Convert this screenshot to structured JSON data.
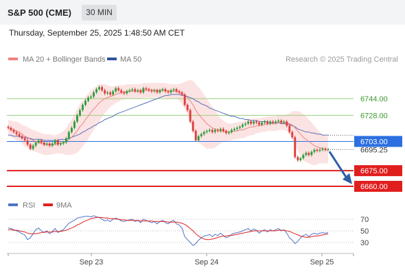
{
  "header": {
    "title": "S&P 500 (CME)",
    "timeframe": "30 MIN"
  },
  "datetime": "Thursday, September 25, 2025 1:48:50 AM CET",
  "legend": {
    "ma20": "MA 20 + Bollinger Bands",
    "ma50": "MA 50",
    "rsi": "RSI",
    "ma9": "9MA"
  },
  "copyright": "Research © 2025 Trading Central",
  "colors": {
    "bull": "#2e9e3e",
    "bear": "#e03c3c",
    "ma20": "#f08080",
    "bollinger_fill": "#fbd9d9",
    "ma50": "#5571b8",
    "resistance": "#9acd7a",
    "pivot": "#2b6fe0",
    "support": "#e01e1e",
    "arrow": "#2d5fa6",
    "rsi": "#4f74c8",
    "ma9_rsi": "#e02020"
  },
  "chart_data": {
    "type": "candlestick",
    "x_ticks": [
      "Sep 23",
      "Sep 24",
      "Sep 25"
    ],
    "y_levels": [
      {
        "label": "6744.00",
        "value": 6744,
        "kind": "resistance"
      },
      {
        "label": "6728.00",
        "value": 6728,
        "kind": "resistance"
      },
      {
        "label": "6703.00",
        "value": 6703,
        "kind": "pivot"
      },
      {
        "label": "6675.00",
        "value": 6675,
        "kind": "support"
      },
      {
        "label": "6660.00",
        "value": 6660,
        "kind": "support"
      }
    ],
    "last_price": {
      "label": "6695.25",
      "value": 6695.25
    },
    "forecast": {
      "from": 6695.25,
      "to": 6664
    },
    "close": [
      6716,
      6714,
      6712,
      6710,
      6708,
      6706,
      6704,
      6700,
      6696,
      6699,
      6702,
      6704,
      6702,
      6700,
      6701,
      6699,
      6701,
      6704,
      6700,
      6701,
      6702,
      6706,
      6712,
      6716,
      6722,
      6728,
      6733,
      6738,
      6742,
      6745,
      6746,
      6750,
      6753,
      6755,
      6752,
      6749,
      6750,
      6748,
      6751,
      6754,
      6752,
      6750,
      6749,
      6751,
      6752,
      6753,
      6751,
      6752,
      6750,
      6754,
      6753,
      6752,
      6751,
      6752,
      6750,
      6752,
      6753,
      6751,
      6750,
      6752,
      6753,
      6751,
      6750,
      6748,
      6738,
      6733,
      6722,
      6713,
      6704,
      6708,
      6710,
      6712,
      6713,
      6714,
      6712,
      6714,
      6713,
      6715,
      6713,
      6711,
      6712,
      6714,
      6715,
      6716,
      6717,
      6719,
      6720,
      6722,
      6720,
      6722,
      6721,
      6719,
      6721,
      6722,
      6720,
      6722,
      6721,
      6722,
      6723,
      6721,
      6722,
      6718,
      6712,
      6707,
      6688,
      6685,
      6687,
      6690,
      6692,
      6690,
      6693,
      6695,
      6694,
      6695,
      6696,
      6695,
      6695.25
    ],
    "ma20": [
      6716,
      6715,
      6714,
      6713,
      6712,
      6710,
      6708,
      6707,
      6705,
      6704,
      6703,
      6702,
      6701,
      6700,
      6700,
      6700,
      6700,
      6700,
      6701,
      6701,
      6702,
      6703,
      6705,
      6707,
      6710,
      6713,
      6717,
      6720,
      6724,
      6727,
      6731,
      6734,
      6737,
      6740,
      6742,
      6744,
      6745,
      6746,
      6747,
      6748,
      6749,
      6750,
      6750,
      6751,
      6751,
      6751,
      6751,
      6751,
      6751,
      6752,
      6752,
      6752,
      6752,
      6752,
      6752,
      6752,
      6752,
      6752,
      6751,
      6751,
      6751,
      6751,
      6750,
      6749,
      6747,
      6745,
      6742,
      6738,
      6733,
      6729,
      6726,
      6723,
      6720,
      6718,
      6716,
      6715,
      6714,
      6713,
      6713,
      6712,
      6712,
      6712,
      6713,
      6713,
      6714,
      6714,
      6715,
      6716,
      6717,
      6717,
      6718,
      6718,
      6719,
      6719,
      6720,
      6720,
      6720,
      6720,
      6721,
      6721,
      6721,
      6721,
      6720,
      6719,
      6716,
      6713,
      6710,
      6707,
      6705,
      6703,
      6701,
      6699,
      6698,
      6697,
      6696,
      6695,
      6695
    ],
    "ma50": [
      6709,
      6709,
      6708,
      6708,
      6708,
      6707,
      6707,
      6706,
      6706,
      6705,
      6705,
      6705,
      6705,
      6704,
      6704,
      6704,
      6704,
      6704,
      6704,
      6705,
      6705,
      6705,
      6706,
      6707,
      6708,
      6709,
      6710,
      6712,
      6713,
      6715,
      6716,
      6718,
      6719,
      6721,
      6722,
      6724,
      6725,
      6726,
      6727,
      6729,
      6730,
      6731,
      6732,
      6733,
      6734,
      6735,
      6736,
      6737,
      6738,
      6739,
      6740,
      6741,
      6742,
      6743,
      6744,
      6745,
      6746,
      6747,
      6747,
      6748,
      6748,
      6748,
      6748,
      6747,
      6747,
      6746,
      6745,
      6744,
      6742,
      6741,
      6739,
      6738,
      6737,
      6735,
      6734,
      6733,
      6732,
      6731,
      6730,
      6729,
      6728,
      6727,
      6727,
      6726,
      6725,
      6725,
      6724,
      6724,
      6723,
      6723,
      6723,
      6722,
      6722,
      6722,
      6722,
      6721,
      6721,
      6721,
      6721,
      6720,
      6720,
      6720,
      6719,
      6718,
      6717,
      6715,
      6714,
      6713,
      6712,
      6712,
      6711,
      6711,
      6710,
      6710,
      6709,
      6709,
      6709
    ],
    "bb_width": [
      8,
      8,
      8,
      9,
      9,
      9,
      10,
      10,
      10,
      10,
      10,
      10,
      10,
      10,
      10,
      10,
      9,
      9,
      9,
      10,
      11,
      13,
      15,
      17,
      19,
      21,
      22,
      22,
      22,
      22,
      21,
      20,
      19,
      18,
      16,
      14,
      12,
      10,
      9,
      8,
      8,
      7,
      7,
      7,
      7,
      7,
      7,
      7,
      7,
      7,
      7,
      7,
      7,
      7,
      7,
      7,
      7,
      7,
      7,
      7,
      7,
      7,
      8,
      10,
      13,
      16,
      20,
      23,
      25,
      26,
      26,
      25,
      24,
      22,
      20,
      18,
      15,
      12,
      10,
      9,
      8,
      8,
      8,
      8,
      8,
      8,
      8,
      8,
      8,
      8,
      7,
      7,
      7,
      7,
      7,
      7,
      7,
      7,
      7,
      7,
      7,
      8,
      10,
      13,
      16,
      19,
      21,
      22,
      22,
      21,
      20,
      19,
      17,
      15,
      14,
      13,
      13
    ],
    "rsi": [
      55,
      54,
      52,
      50,
      48,
      45,
      43,
      35,
      38,
      45,
      52,
      55,
      50,
      47,
      50,
      45,
      49,
      54,
      47,
      50,
      52,
      58,
      63,
      66,
      68,
      72,
      73,
      74,
      75,
      75,
      74,
      76,
      74,
      73,
      70,
      67,
      69,
      66,
      70,
      72,
      70,
      67,
      66,
      68,
      69,
      70,
      66,
      68,
      64,
      70,
      68,
      66,
      64,
      66,
      62,
      66,
      68,
      64,
      62,
      66,
      68,
      62,
      60,
      55,
      40,
      35,
      30,
      25,
      28,
      34,
      38,
      41,
      42,
      44,
      40,
      44,
      42,
      46,
      42,
      38,
      40,
      44,
      46,
      47,
      48,
      50,
      52,
      54,
      50,
      53,
      51,
      46,
      50,
      52,
      48,
      52,
      50,
      52,
      54,
      50,
      52,
      46,
      38,
      34,
      28,
      32,
      38,
      42,
      44,
      40,
      44,
      46,
      44,
      46,
      47,
      46,
      47
    ],
    "rsi_ma9": [
      52,
      52,
      51,
      51,
      50,
      49,
      48,
      46,
      45,
      45,
      45,
      46,
      47,
      48,
      48,
      48,
      48,
      49,
      49,
      49,
      50,
      51,
      53,
      55,
      57,
      60,
      62,
      65,
      67,
      69,
      71,
      72,
      73,
      73,
      73,
      72,
      72,
      71,
      71,
      70,
      70,
      69,
      69,
      68,
      68,
      68,
      68,
      68,
      67,
      67,
      67,
      67,
      67,
      66,
      66,
      66,
      66,
      66,
      65,
      65,
      65,
      65,
      64,
      63,
      61,
      58,
      54,
      50,
      45,
      41,
      38,
      36,
      35,
      35,
      36,
      37,
      39,
      40,
      41,
      41,
      42,
      42,
      43,
      44,
      45,
      46,
      47,
      48,
      49,
      50,
      50,
      50,
      50,
      50,
      50,
      50,
      50,
      50,
      51,
      51,
      51,
      50,
      49,
      47,
      45,
      43,
      41,
      40,
      39,
      39,
      40,
      41,
      41,
      42,
      43,
      44,
      45
    ],
    "rsi_ticks": [
      "70",
      "50",
      "30"
    ]
  }
}
